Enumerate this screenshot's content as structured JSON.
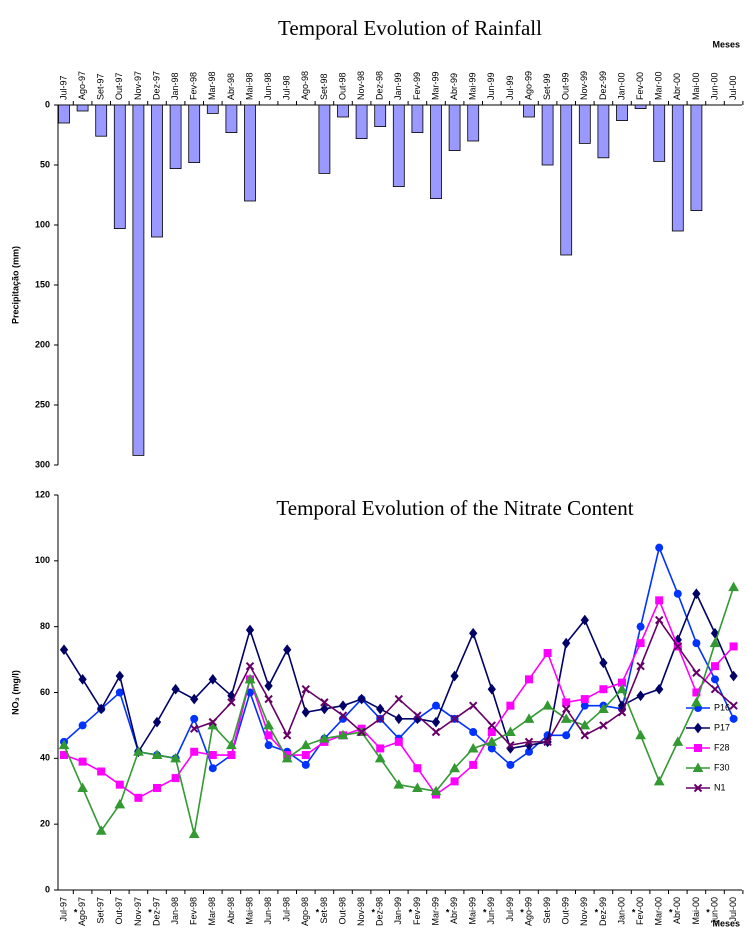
{
  "chart_data": [
    {
      "type": "bar",
      "title": "Temporal Evolution of Rainfall",
      "x_label": "Meses",
      "y_label": "Precipitação (mm)",
      "categories": [
        "Jul-97",
        "Ago-97",
        "Set-97",
        "Out-97",
        "Nov-97",
        "Dez-97",
        "Jan-98",
        "Fev-98",
        "Mar-98",
        "Abr-98",
        "Mai-98",
        "Jun-98",
        "Jul-98",
        "Ago-98",
        "Set-98",
        "Out-98",
        "Nov-98",
        "Dez-98",
        "Jan-99",
        "Fev-99",
        "Mar-99",
        "Abr-99",
        "Mai-99",
        "Jun-99",
        "Jul-99",
        "Ago-99",
        "Set-99",
        "Out-99",
        "Nov-99",
        "Dez-99",
        "Jan-00",
        "Fev-00",
        "Mar-00",
        "Abr-00",
        "Mai-00",
        "Jun-00",
        "Jul-00"
      ],
      "values": [
        15,
        5,
        26,
        103,
        292,
        110,
        53,
        48,
        7,
        23,
        80,
        0,
        0,
        0,
        57,
        10,
        28,
        18,
        68,
        23,
        78,
        38,
        30,
        0,
        0,
        10,
        50,
        125,
        32,
        44,
        13,
        3,
        47,
        105,
        88,
        0,
        0
      ],
      "color": "#9999ff",
      "ylim": [
        0,
        300
      ],
      "yticks": [
        0,
        50,
        100,
        150,
        200,
        250,
        300
      ],
      "y_inverted": true
    },
    {
      "type": "line",
      "title": "Temporal Evolution of the Nitrate Content",
      "x_label": "Meses",
      "y_label": "NO₃ (mg/l)",
      "categories": [
        "Jul-97",
        "Ago-97",
        "Set-97",
        "Out-97",
        "Nov-97",
        "Dez-97",
        "Jan-98",
        "Fev-98",
        "Mar-98",
        "Abr-98",
        "Mai-98",
        "Jun-98",
        "Jul-98",
        "Ago-98",
        "Set-98",
        "Out-98",
        "Nov-98",
        "Dez-98",
        "Jan-99",
        "Fev-99",
        "Mar-99",
        "Abr-99",
        "Mai-99",
        "Jun-99",
        "Jul-99",
        "Ago-99",
        "Set-99",
        "Out-99",
        "Nov-99",
        "Dez-99",
        "Jan-00",
        "Fev-00",
        "Mar-00",
        "Abr-00",
        "Mai-00",
        "Jun-00",
        "Jul-00"
      ],
      "category_notes": [
        null,
        "*",
        null,
        null,
        null,
        "*",
        null,
        null,
        null,
        null,
        null,
        null,
        null,
        null,
        "*",
        null,
        null,
        "*",
        null,
        "*",
        null,
        "*",
        null,
        "*",
        null,
        "*",
        null,
        null,
        null,
        "*",
        null,
        "*",
        null,
        "*",
        null,
        "*",
        null
      ],
      "ylim": [
        0,
        120
      ],
      "yticks": [
        0,
        20,
        40,
        60,
        80,
        100,
        120
      ],
      "legend": "right",
      "series": [
        {
          "name": "P16",
          "color": "#0033ff",
          "marker": "circle",
          "values": [
            45,
            50,
            55,
            60,
            42,
            41,
            40,
            52,
            37,
            41,
            60,
            44,
            42,
            38,
            46,
            52,
            58,
            52,
            46,
            52,
            56,
            52,
            48,
            43,
            38,
            42,
            47,
            47,
            56,
            56,
            55,
            80,
            104,
            90,
            75,
            64,
            52
          ]
        },
        {
          "name": "P17",
          "color": "#000066",
          "marker": "diamond",
          "values": [
            73,
            64,
            55,
            65,
            42,
            51,
            61,
            58,
            64,
            59,
            79,
            62,
            73,
            54,
            55,
            56,
            58,
            55,
            52,
            52,
            51,
            65,
            78,
            61,
            43,
            44,
            45,
            75,
            82,
            69,
            56,
            59,
            61,
            76,
            90,
            78,
            65
          ]
        },
        {
          "name": "F28",
          "color": "#ff00ff",
          "marker": "square",
          "values": [
            41,
            39,
            36,
            32,
            28,
            31,
            34,
            42,
            41,
            41,
            64,
            47,
            41,
            41,
            45,
            47,
            49,
            43,
            45,
            37,
            29,
            33,
            38,
            48,
            56,
            64,
            72,
            57,
            58,
            61,
            63,
            75,
            88,
            74,
            60,
            68,
            74
          ]
        },
        {
          "name": "F30",
          "color": "#339933",
          "marker": "triangle",
          "values": [
            44,
            31,
            18,
            26,
            42,
            41,
            40,
            17,
            50,
            44,
            64,
            50,
            40,
            44,
            46,
            47,
            48,
            40,
            32,
            31,
            30,
            37,
            43,
            45,
            48,
            52,
            56,
            52,
            50,
            55,
            61,
            47,
            33,
            45,
            57,
            75,
            92
          ]
        },
        {
          "name": "N1",
          "color": "#660066",
          "marker": "x",
          "values": [
            null,
            null,
            null,
            null,
            null,
            null,
            null,
            49,
            51,
            57,
            68,
            58,
            47,
            61,
            57,
            53,
            48,
            52,
            58,
            53,
            48,
            52,
            56,
            50,
            44,
            45,
            45,
            55,
            47,
            50,
            54,
            68,
            82,
            74,
            66,
            61,
            56
          ]
        }
      ]
    }
  ]
}
